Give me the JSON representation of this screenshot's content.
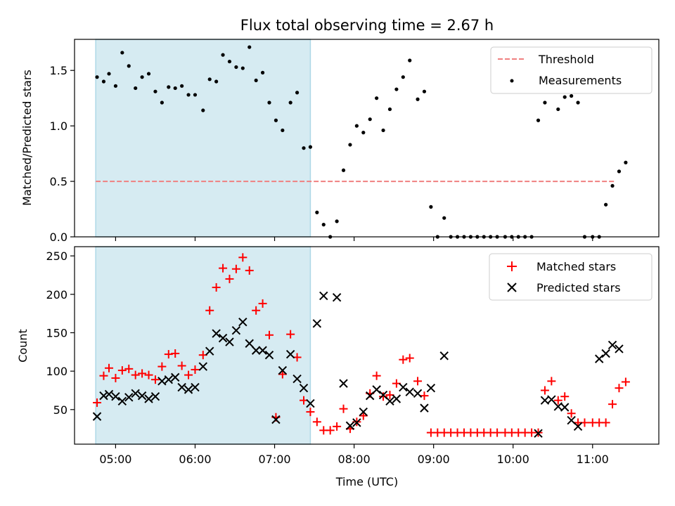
{
  "chart_data": [
    {
      "type": "scatter",
      "title": "Flux total observing time = 2.67 h",
      "ylabel": "Matched/Predicted stars",
      "xlim": [
        "04:29",
        "11:50"
      ],
      "ylim": [
        0,
        1.78
      ],
      "yticks": [
        "0.0",
        "0.5",
        "1.0",
        "1.5"
      ],
      "shaded_span": {
        "from": "04:45",
        "to": "07:27",
        "color": "#add8e6"
      },
      "threshold": {
        "name": "Threshold",
        "value": 0.5,
        "from": "04:45",
        "to": "11:17",
        "color": "#f08080"
      },
      "series": [
        {
          "name": "Measurements",
          "color": "#000000",
          "points": [
            [
              "04:46",
              1.44
            ],
            [
              "04:51",
              1.4
            ],
            [
              "04:55",
              1.47
            ],
            [
              "05:00",
              1.36
            ],
            [
              "05:05",
              1.66
            ],
            [
              "05:10",
              1.54
            ],
            [
              "05:15",
              1.34
            ],
            [
              "05:20",
              1.44
            ],
            [
              "05:25",
              1.47
            ],
            [
              "05:30",
              1.31
            ],
            [
              "05:35",
              1.21
            ],
            [
              "05:40",
              1.35
            ],
            [
              "05:45",
              1.34
            ],
            [
              "05:50",
              1.36
            ],
            [
              "05:55",
              1.28
            ],
            [
              "06:00",
              1.28
            ],
            [
              "06:06",
              1.14
            ],
            [
              "06:11",
              1.42
            ],
            [
              "06:16",
              1.4
            ],
            [
              "06:21",
              1.64
            ],
            [
              "06:26",
              1.58
            ],
            [
              "06:31",
              1.53
            ],
            [
              "06:36",
              1.52
            ],
            [
              "06:41",
              1.71
            ],
            [
              "06:46",
              1.41
            ],
            [
              "06:51",
              1.48
            ],
            [
              "06:56",
              1.21
            ],
            [
              "07:01",
              1.05
            ],
            [
              "07:06",
              0.96
            ],
            [
              "07:12",
              1.21
            ],
            [
              "07:17",
              1.3
            ],
            [
              "07:22",
              0.8
            ],
            [
              "07:27",
              0.81
            ],
            [
              "07:32",
              0.22
            ],
            [
              "07:37",
              0.11
            ],
            [
              "07:42",
              0.0
            ],
            [
              "07:47",
              0.14
            ],
            [
              "07:52",
              0.6
            ],
            [
              "07:57",
              0.83
            ],
            [
              "08:02",
              1.0
            ],
            [
              "08:07",
              0.94
            ],
            [
              "08:12",
              1.06
            ],
            [
              "08:17",
              1.25
            ],
            [
              "08:22",
              0.96
            ],
            [
              "08:27",
              1.15
            ],
            [
              "08:32",
              1.33
            ],
            [
              "08:37",
              1.44
            ],
            [
              "08:42",
              1.59
            ],
            [
              "08:48",
              1.24
            ],
            [
              "08:53",
              1.31
            ],
            [
              "08:58",
              0.27
            ],
            [
              "09:03",
              0.0
            ],
            [
              "09:08",
              0.17
            ],
            [
              "09:13",
              0.0
            ],
            [
              "09:18",
              0.0
            ],
            [
              "09:23",
              0.0
            ],
            [
              "09:28",
              0.0
            ],
            [
              "09:33",
              0.0
            ],
            [
              "09:38",
              0.0
            ],
            [
              "09:43",
              0.0
            ],
            [
              "09:48",
              0.0
            ],
            [
              "09:54",
              0.0
            ],
            [
              "09:59",
              0.0
            ],
            [
              "10:04",
              0.0
            ],
            [
              "10:09",
              0.0
            ],
            [
              "10:14",
              0.0
            ],
            [
              "10:19",
              1.05
            ],
            [
              "10:24",
              1.21
            ],
            [
              "10:29",
              1.4
            ],
            [
              "10:34",
              1.15
            ],
            [
              "10:39",
              1.26
            ],
            [
              "10:44",
              1.27
            ],
            [
              "10:49",
              1.21
            ],
            [
              "10:54",
              0.0
            ],
            [
              "11:00",
              0.0
            ],
            [
              "11:05",
              0.0
            ],
            [
              "11:10",
              0.29
            ],
            [
              "11:15",
              0.46
            ],
            [
              "11:20",
              0.59
            ],
            [
              "11:25",
              0.67
            ]
          ]
        }
      ],
      "legend": {
        "position": "top-right",
        "entries": [
          "Threshold",
          "Measurements"
        ]
      }
    },
    {
      "type": "scatter",
      "xlabel": "Time (UTC)",
      "ylabel": "Count",
      "xlim": [
        "04:29",
        "11:50"
      ],
      "ylim": [
        5,
        262
      ],
      "xticks": [
        "05:00",
        "06:00",
        "07:00",
        "08:00",
        "09:00",
        "10:00",
        "11:00"
      ],
      "yticks": [
        "50",
        "100",
        "150",
        "200",
        "250"
      ],
      "shaded_span": {
        "from": "04:45",
        "to": "07:27",
        "color": "#add8e6"
      },
      "series": [
        {
          "name": "Matched stars",
          "marker": "+",
          "color": "#ff0000",
          "points": [
            [
              "04:46",
              59
            ],
            [
              "04:51",
              94
            ],
            [
              "04:55",
              104
            ],
            [
              "05:00",
              91
            ],
            [
              "05:05",
              101
            ],
            [
              "05:10",
              103
            ],
            [
              "05:15",
              95
            ],
            [
              "05:20",
              97
            ],
            [
              "05:25",
              95
            ],
            [
              "05:30",
              89
            ],
            [
              "05:35",
              106
            ],
            [
              "05:40",
              122
            ],
            [
              "05:45",
              123
            ],
            [
              "05:50",
              107
            ],
            [
              "05:55",
              95
            ],
            [
              "06:00",
              102
            ],
            [
              "06:06",
              121
            ],
            [
              "06:11",
              179
            ],
            [
              "06:16",
              209
            ],
            [
              "06:21",
              234
            ],
            [
              "06:26",
              220
            ],
            [
              "06:31",
              233
            ],
            [
              "06:36",
              248
            ],
            [
              "06:41",
              231
            ],
            [
              "06:46",
              179
            ],
            [
              "06:51",
              188
            ],
            [
              "06:56",
              147
            ],
            [
              "07:01",
              40
            ],
            [
              "07:06",
              96
            ],
            [
              "07:12",
              148
            ],
            [
              "07:17",
              118
            ],
            [
              "07:22",
              62
            ],
            [
              "07:27",
              47
            ],
            [
              "07:32",
              34
            ],
            [
              "07:37",
              23
            ],
            [
              "07:42",
              23
            ],
            [
              "07:47",
              28
            ],
            [
              "07:52",
              51
            ],
            [
              "07:57",
              25
            ],
            [
              "08:02",
              34
            ],
            [
              "08:07",
              42
            ],
            [
              "08:12",
              71
            ],
            [
              "08:17",
              94
            ],
            [
              "08:22",
              67
            ],
            [
              "08:27",
              69
            ],
            [
              "08:32",
              84
            ],
            [
              "08:37",
              115
            ],
            [
              "08:42",
              117
            ],
            [
              "08:48",
              87
            ],
            [
              "08:53",
              68
            ],
            [
              "08:58",
              20
            ],
            [
              "09:03",
              20
            ],
            [
              "09:08",
              20
            ],
            [
              "09:13",
              20
            ],
            [
              "09:18",
              20
            ],
            [
              "09:23",
              20
            ],
            [
              "09:28",
              20
            ],
            [
              "09:33",
              20
            ],
            [
              "09:38",
              20
            ],
            [
              "09:43",
              20
            ],
            [
              "09:48",
              20
            ],
            [
              "09:54",
              20
            ],
            [
              "09:59",
              20
            ],
            [
              "10:04",
              20
            ],
            [
              "10:09",
              20
            ],
            [
              "10:14",
              20
            ],
            [
              "10:19",
              20
            ],
            [
              "10:24",
              75
            ],
            [
              "10:29",
              87
            ],
            [
              "10:34",
              62
            ],
            [
              "10:39",
              67
            ],
            [
              "10:44",
              45
            ],
            [
              "10:49",
              33
            ],
            [
              "10:54",
              33
            ],
            [
              "11:00",
              33
            ],
            [
              "11:05",
              33
            ],
            [
              "11:10",
              33
            ],
            [
              "11:15",
              57
            ],
            [
              "11:20",
              78
            ],
            [
              "11:25",
              86
            ]
          ]
        },
        {
          "name": "Predicted stars",
          "marker": "x",
          "color": "#000000",
          "points": [
            [
              "04:46",
              41
            ],
            [
              "04:51",
              68
            ],
            [
              "04:55",
              70
            ],
            [
              "05:00",
              67
            ],
            [
              "05:05",
              61
            ],
            [
              "05:10",
              66
            ],
            [
              "05:15",
              71
            ],
            [
              "05:20",
              68
            ],
            [
              "05:25",
              64
            ],
            [
              "05:30",
              67
            ],
            [
              "05:35",
              87
            ],
            [
              "05:40",
              89
            ],
            [
              "05:45",
              92
            ],
            [
              "05:50",
              79
            ],
            [
              "05:55",
              76
            ],
            [
              "06:00",
              79
            ],
            [
              "06:06",
              106
            ],
            [
              "06:11",
              126
            ],
            [
              "06:16",
              149
            ],
            [
              "06:21",
              143
            ],
            [
              "06:26",
              138
            ],
            [
              "06:31",
              153
            ],
            [
              "06:36",
              164
            ],
            [
              "06:41",
              136
            ],
            [
              "06:46",
              127
            ],
            [
              "06:51",
              127
            ],
            [
              "06:56",
              121
            ],
            [
              "07:01",
              37
            ],
            [
              "07:06",
              101
            ],
            [
              "07:12",
              122
            ],
            [
              "07:17",
              90
            ],
            [
              "07:22",
              78
            ],
            [
              "07:27",
              58
            ],
            [
              "07:32",
              162
            ],
            [
              "07:37",
              198
            ],
            [
              "07:47",
              196
            ],
            [
              "07:52",
              84
            ],
            [
              "07:57",
              29
            ],
            [
              "08:02",
              33
            ],
            [
              "08:07",
              47
            ],
            [
              "08:12",
              68
            ],
            [
              "08:17",
              76
            ],
            [
              "08:22",
              69
            ],
            [
              "08:27",
              61
            ],
            [
              "08:32",
              64
            ],
            [
              "08:37",
              79
            ],
            [
              "08:42",
              73
            ],
            [
              "08:48",
              71
            ],
            [
              "08:53",
              52
            ],
            [
              "08:58",
              78
            ],
            [
              "09:08",
              120
            ],
            [
              "10:19",
              19
            ],
            [
              "10:24",
              62
            ],
            [
              "10:29",
              63
            ],
            [
              "10:34",
              54
            ],
            [
              "10:39",
              53
            ],
            [
              "10:44",
              36
            ],
            [
              "10:49",
              28
            ],
            [
              "11:05",
              116
            ],
            [
              "11:10",
              123
            ],
            [
              "11:15",
              134
            ],
            [
              "11:20",
              129
            ]
          ]
        }
      ],
      "legend": {
        "position": "top-right",
        "entries": [
          "Matched stars",
          "Predicted stars"
        ]
      }
    }
  ]
}
